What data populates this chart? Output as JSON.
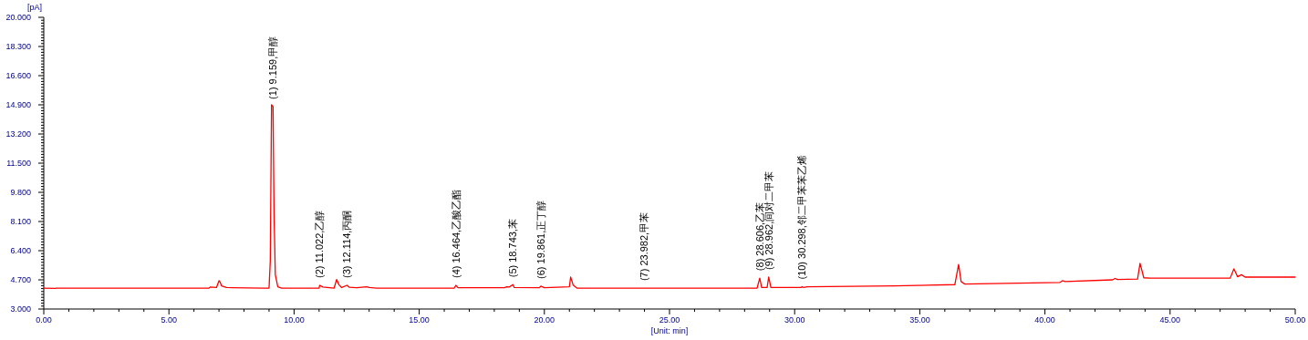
{
  "chart_data": {
    "type": "line",
    "xlabel": "[Unit: min]",
    "ylabel": "[pA]",
    "xlim": [
      0,
      50
    ],
    "ylim": [
      3,
      20
    ],
    "xticks": [
      {
        "value": 0,
        "label": "0.00"
      },
      {
        "value": 5,
        "label": "5.00"
      },
      {
        "value": 10,
        "label": "10.00"
      },
      {
        "value": 15,
        "label": "15.00"
      },
      {
        "value": 20,
        "label": "20.00"
      },
      {
        "value": 25,
        "label": "25.00"
      },
      {
        "value": 30,
        "label": "30.00"
      },
      {
        "value": 35,
        "label": "35.00"
      },
      {
        "value": 40,
        "label": "40.00"
      },
      {
        "value": 45,
        "label": "45.00"
      },
      {
        "value": 50,
        "label": "50.00"
      }
    ],
    "yticks": [
      {
        "value": 3,
        "label": "3.000"
      },
      {
        "value": 4.7,
        "label": "4.700"
      },
      {
        "value": 6.4,
        "label": "6.400"
      },
      {
        "value": 8.1,
        "label": "8.100"
      },
      {
        "value": 9.8,
        "label": "9.800"
      },
      {
        "value": 11.5,
        "label": "11.500"
      },
      {
        "value": 13.2,
        "label": "13.200"
      },
      {
        "value": 14.9,
        "label": "14.900"
      },
      {
        "value": 16.6,
        "label": "16.600"
      },
      {
        "value": 18.3,
        "label": "18.300"
      },
      {
        "value": 20,
        "label": "20.000"
      }
    ],
    "grid": false,
    "marker": "none",
    "line_style": "solid",
    "series": [
      {
        "color": "#ff0000",
        "x": [
          0,
          0.45,
          0.5,
          6.6,
          6.65,
          6.9,
          7.0,
          7.05,
          7.1,
          7.3,
          8.8,
          9.0,
          9.05,
          9.1,
          9.159,
          9.2,
          9.25,
          9.35,
          9.5,
          11.0,
          11.022,
          11.15,
          11.6,
          11.7,
          11.8,
          11.9,
          12.114,
          12.2,
          12.5,
          12.9,
          13.0,
          13.3,
          16.4,
          16.464,
          16.55,
          18.4,
          18.5,
          18.6,
          18.743,
          18.8,
          19.8,
          19.861,
          20.0,
          21.0,
          21.05,
          21.15,
          21.3,
          23.982,
          28.5,
          28.606,
          28.68,
          28.9,
          28.962,
          29.05,
          30.25,
          30.298,
          30.35,
          30.5,
          34.0,
          36.4,
          36.5,
          36.55,
          36.65,
          36.8,
          40.6,
          40.7,
          40.8,
          42.7,
          42.8,
          42.9,
          43.7,
          43.8,
          43.95,
          44.2,
          47.4,
          47.55,
          47.7,
          47.85,
          48.0,
          50.0
        ],
        "values": [
          4.22,
          4.2,
          4.22,
          4.22,
          4.28,
          4.25,
          4.65,
          4.55,
          4.35,
          4.25,
          4.22,
          4.22,
          5.8,
          14.9,
          14.8,
          8.5,
          5.0,
          4.3,
          4.22,
          4.22,
          4.38,
          4.28,
          4.22,
          4.72,
          4.4,
          4.25,
          4.38,
          4.27,
          4.24,
          4.3,
          4.26,
          4.22,
          4.22,
          4.38,
          4.24,
          4.24,
          4.3,
          4.28,
          4.42,
          4.25,
          4.24,
          4.33,
          4.24,
          4.3,
          4.86,
          4.4,
          4.22,
          4.22,
          4.22,
          4.8,
          4.25,
          4.25,
          4.86,
          4.25,
          4.25,
          4.3,
          4.26,
          4.3,
          4.35,
          4.42,
          5.2,
          5.6,
          4.6,
          4.45,
          4.55,
          4.65,
          4.6,
          4.7,
          4.78,
          4.72,
          4.75,
          5.66,
          4.82,
          4.8,
          4.8,
          5.34,
          4.88,
          5.0,
          4.86,
          4.86
        ]
      }
    ],
    "annotations": [
      {
        "text": "(1) 9.159,甲醇",
        "x": 9.159,
        "y": 14.8
      },
      {
        "text": "(2) 11.022,乙醇",
        "x": 11.022,
        "y": 4.38
      },
      {
        "text": "(3) 12.114,丙酮",
        "x": 12.114,
        "y": 4.38
      },
      {
        "text": "(4) 16.464,乙酸乙酯",
        "x": 16.464,
        "y": 4.38
      },
      {
        "text": "(5) 18.743,苯",
        "x": 18.743,
        "y": 4.42
      },
      {
        "text": "(6) 19.861,正丁醇",
        "x": 19.861,
        "y": 4.33
      },
      {
        "text": "(7) 23.982,甲苯",
        "x": 23.982,
        "y": 4.22
      },
      {
        "text": "(8) 28.606,乙苯",
        "x": 28.606,
        "y": 4.8
      },
      {
        "text": "(9) 28.962,间对二甲苯",
        "x": 28.962,
        "y": 4.86
      },
      {
        "text": "(10) 30.298,邻二甲苯苯乙烯",
        "x": 30.298,
        "y": 4.3
      }
    ]
  }
}
